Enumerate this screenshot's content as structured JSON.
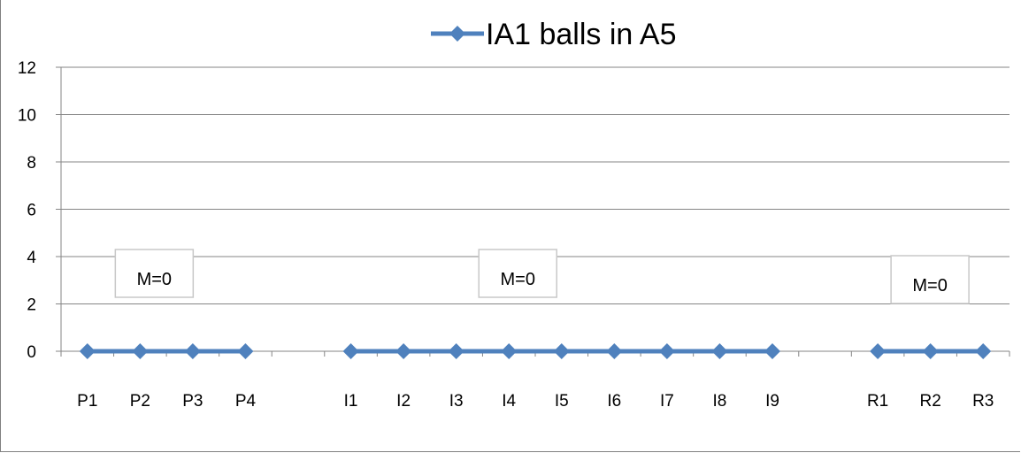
{
  "chart_data": {
    "type": "line",
    "title": "",
    "xlabel": "",
    "ylabel": "",
    "ylim": [
      0,
      12
    ],
    "yticks": [
      0,
      2,
      4,
      6,
      8,
      10,
      12
    ],
    "grid": true,
    "legend_position": "top",
    "categories": [
      "P1",
      "P2",
      "P3",
      "P4",
      "",
      "I1",
      "I2",
      "I3",
      "I4",
      "I5",
      "I6",
      "I7",
      "I8",
      "I9",
      "",
      "R1",
      "R2",
      "R3"
    ],
    "series": [
      {
        "name": "IA1 balls in A5",
        "color": "#4f81bd",
        "marker": "diamond",
        "values": [
          0,
          0,
          0,
          0,
          null,
          0,
          0,
          0,
          0,
          0,
          0,
          0,
          0,
          0,
          null,
          0,
          0,
          0
        ]
      }
    ],
    "annotations": [
      {
        "text": "M=0",
        "group": "P"
      },
      {
        "text": "M=0",
        "group": "I"
      },
      {
        "text": "M=0",
        "group": "R"
      }
    ]
  }
}
